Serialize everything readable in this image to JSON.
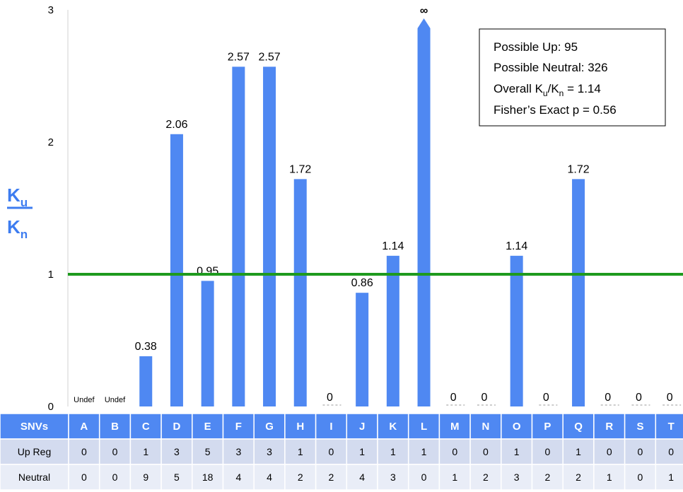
{
  "chart_data": {
    "type": "bar",
    "ylabel": "Ku/Kn",
    "ylim": [
      0,
      3
    ],
    "yticks": [
      "0",
      "1",
      "2",
      "3"
    ],
    "reference_line": 1,
    "categories": [
      "A",
      "B",
      "C",
      "D",
      "E",
      "F",
      "G",
      "H",
      "I",
      "J",
      "K",
      "L",
      "M",
      "N",
      "O",
      "P",
      "Q",
      "R",
      "S",
      "T"
    ],
    "values": [
      null,
      null,
      0.38,
      2.06,
      0.95,
      2.57,
      2.57,
      1.72,
      0,
      0.86,
      1.14,
      "∞",
      0,
      0,
      1.14,
      0,
      1.72,
      0,
      0,
      0
    ],
    "data_labels": [
      "Undef",
      "Undef",
      "0.38",
      "2.06",
      "0.95",
      "2.57",
      "2.57",
      "1.72",
      "0",
      "0.86",
      "1.14",
      "∞",
      "0",
      "0",
      "1.14",
      "0",
      "1.72",
      "0",
      "0",
      "0"
    ],
    "colors": {
      "bar": "#4f88f2",
      "reference_line": "#1e9a1e",
      "table_header": "#4f88f2",
      "table_row_1": "#d3dbef",
      "table_row_2": "#e9edf7",
      "axis_label": "#3d7cf0"
    },
    "annotation_box": {
      "line1": "Possible Up: 95",
      "line2": "Possible Neutral: 326",
      "line3_prefix": "Overall K",
      "line3_sub1": "u",
      "line3_mid": "/K",
      "line3_sub2": "n",
      "line3_suffix": " = 1.14",
      "line4": "Fisher’s Exact p = 0.56"
    },
    "table": {
      "header": "SNVs",
      "rows": [
        {
          "label": "Up Reg",
          "values": [
            "0",
            "0",
            "1",
            "3",
            "5",
            "3",
            "3",
            "1",
            "0",
            "1",
            "1",
            "1",
            "0",
            "0",
            "1",
            "0",
            "1",
            "0",
            "0",
            "0"
          ]
        },
        {
          "label": "Neutral",
          "values": [
            "0",
            "0",
            "9",
            "5",
            "18",
            "4",
            "4",
            "2",
            "2",
            "4",
            "3",
            "0",
            "1",
            "2",
            "3",
            "2",
            "2",
            "1",
            "0",
            "1"
          ]
        }
      ]
    },
    "axis_label": {
      "top": "K",
      "top_sub": "u",
      "bottom": "K",
      "bottom_sub": "n"
    }
  }
}
